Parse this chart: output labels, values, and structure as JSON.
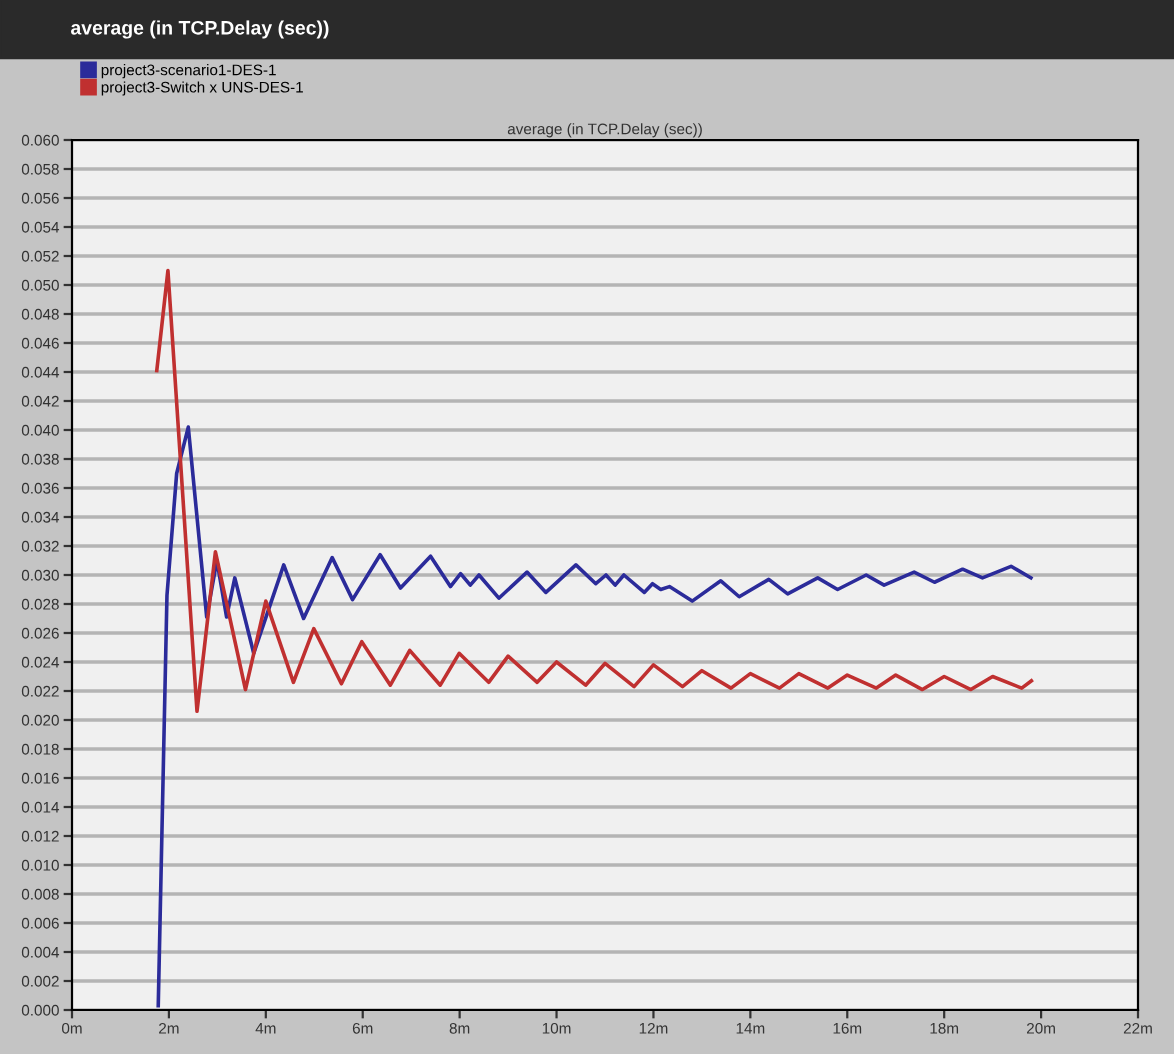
{
  "chart_data": {
    "type": "line",
    "title": "average (in TCP.Delay (sec))",
    "subtitle": "average (in TCP.Delay (sec))",
    "series": [
      {
        "name": "project3-scenario1-DES-1",
        "color": "#2b2b9a",
        "x": [
          1.78,
          1.96,
          2.16,
          2.4,
          2.78,
          2.99,
          3.19,
          3.36,
          3.75,
          4.37,
          4.78,
          5.37,
          5.79,
          6.36,
          6.78,
          7.4,
          7.81,
          8.02,
          8.22,
          8.4,
          8.81,
          9.39,
          9.78,
          10.4,
          10.81,
          11.02,
          11.21,
          11.39,
          11.81,
          11.98,
          12.15,
          12.33,
          12.8,
          13.39,
          13.77,
          14.38,
          14.77,
          15.39,
          15.8,
          16.39,
          16.76,
          17.38,
          17.8,
          18.38,
          18.79,
          19.38,
          19.79
        ],
        "values": [
          0.0003,
          0.0286,
          0.037,
          0.0402,
          0.0271,
          0.031,
          0.0271,
          0.0298,
          0.0246,
          0.0307,
          0.027,
          0.0312,
          0.0283,
          0.0314,
          0.0291,
          0.0313,
          0.0292,
          0.0301,
          0.0293,
          0.03,
          0.0284,
          0.0302,
          0.0288,
          0.0307,
          0.0294,
          0.03,
          0.0293,
          0.03,
          0.0288,
          0.0294,
          0.029,
          0.0292,
          0.0282,
          0.0296,
          0.0285,
          0.0297,
          0.0287,
          0.0298,
          0.029,
          0.03,
          0.0293,
          0.0302,
          0.0295,
          0.0304,
          0.0298,
          0.0306,
          0.0298
        ]
      },
      {
        "name": "project3-Switch x UNS-DES-1",
        "color": "#c03030",
        "x": [
          1.75,
          1.98,
          2.58,
          2.96,
          3.58,
          4.0,
          4.57,
          4.99,
          5.56,
          5.98,
          6.57,
          6.97,
          7.6,
          7.99,
          8.6,
          9.0,
          9.6,
          10.0,
          10.6,
          11.0,
          11.6,
          12.0,
          12.6,
          13.0,
          13.6,
          14.0,
          14.6,
          15.0,
          15.6,
          16.0,
          16.6,
          17.0,
          17.55,
          18.0,
          18.55,
          19.0,
          19.6,
          19.8
        ],
        "values": [
          0.0441,
          0.051,
          0.0206,
          0.0316,
          0.0221,
          0.0282,
          0.0226,
          0.0263,
          0.0225,
          0.0254,
          0.0224,
          0.0248,
          0.0224,
          0.0246,
          0.0226,
          0.0244,
          0.0226,
          0.024,
          0.0224,
          0.0239,
          0.0223,
          0.0238,
          0.0223,
          0.0234,
          0.0222,
          0.0232,
          0.0222,
          0.0232,
          0.0222,
          0.0231,
          0.0222,
          0.0231,
          0.0221,
          0.023,
          0.0221,
          0.023,
          0.0222,
          0.0227
        ]
      }
    ],
    "xlim": [
      0,
      22
    ],
    "xticks": [
      {
        "value": 0,
        "label": "0m"
      },
      {
        "value": 2,
        "label": "2m"
      },
      {
        "value": 4,
        "label": "4m"
      },
      {
        "value": 6,
        "label": "6m"
      },
      {
        "value": 8,
        "label": "8m"
      },
      {
        "value": 10,
        "label": "10m"
      },
      {
        "value": 12,
        "label": "12m"
      },
      {
        "value": 14,
        "label": "14m"
      },
      {
        "value": 16,
        "label": "16m"
      },
      {
        "value": 18,
        "label": "18m"
      },
      {
        "value": 20,
        "label": "20m"
      },
      {
        "value": 22,
        "label": "22m"
      }
    ],
    "ylim": [
      0,
      0.06
    ],
    "yticks": [
      {
        "value": 0,
        "label": "0.000"
      },
      {
        "value": 0.002,
        "label": "0.002"
      },
      {
        "value": 0.004,
        "label": "0.004"
      },
      {
        "value": 0.006,
        "label": "0.006"
      },
      {
        "value": 0.008,
        "label": "0.008"
      },
      {
        "value": 0.01,
        "label": "0.010"
      },
      {
        "value": 0.012,
        "label": "0.012"
      },
      {
        "value": 0.014,
        "label": "0.014"
      },
      {
        "value": 0.016,
        "label": "0.016"
      },
      {
        "value": 0.018,
        "label": "0.018"
      },
      {
        "value": 0.02,
        "label": "0.020"
      },
      {
        "value": 0.022,
        "label": "0.022"
      },
      {
        "value": 0.024,
        "label": "0.024"
      },
      {
        "value": 0.026,
        "label": "0.026"
      },
      {
        "value": 0.028,
        "label": "0.028"
      },
      {
        "value": 0.03,
        "label": "0.030"
      },
      {
        "value": 0.032,
        "label": "0.032"
      },
      {
        "value": 0.034,
        "label": "0.034"
      },
      {
        "value": 0.036,
        "label": "0.036"
      },
      {
        "value": 0.038,
        "label": "0.038"
      },
      {
        "value": 0.04,
        "label": "0.040"
      },
      {
        "value": 0.042,
        "label": "0.042"
      },
      {
        "value": 0.044,
        "label": "0.044"
      },
      {
        "value": 0.046,
        "label": "0.046"
      },
      {
        "value": 0.048,
        "label": "0.048"
      },
      {
        "value": 0.05,
        "label": "0.050"
      },
      {
        "value": 0.052,
        "label": "0.052"
      },
      {
        "value": 0.054,
        "label": "0.054"
      },
      {
        "value": 0.056,
        "label": "0.056"
      },
      {
        "value": 0.058,
        "label": "0.058"
      },
      {
        "value": 0.06,
        "label": "0.060"
      }
    ],
    "grid": "y",
    "legend": "top left",
    "marker": "none",
    "line_style": "solid"
  }
}
